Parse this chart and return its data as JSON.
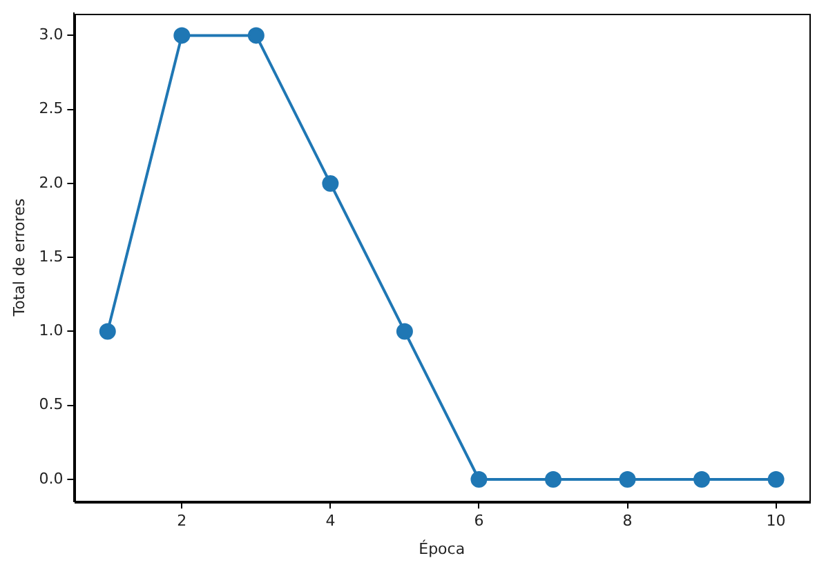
{
  "chart_data": {
    "type": "line",
    "xlabel": "Época",
    "ylabel": "Total de errores",
    "x": [
      1,
      2,
      3,
      4,
      5,
      6,
      7,
      8,
      9,
      10
    ],
    "series": [
      {
        "color": "#1f77b4",
        "values": [
          1,
          3,
          3,
          2,
          1,
          0,
          0,
          0,
          0,
          0
        ]
      }
    ],
    "xlim": [
      0.55,
      10.45
    ],
    "ylim": [
      -0.15,
      3.15
    ],
    "xticks": [
      2,
      4,
      6,
      8,
      10
    ],
    "yticks": [
      {
        "value": 0,
        "label": "0.0"
      },
      {
        "value": 0.5,
        "label": "0.5"
      },
      {
        "value": 1,
        "label": "1.0"
      },
      {
        "value": 1.5,
        "label": "1.5"
      },
      {
        "value": 2,
        "label": "2.0"
      },
      {
        "value": 2.5,
        "label": "2.5"
      },
      {
        "value": 3,
        "label": "3.0"
      }
    ],
    "grid": false,
    "legend": false,
    "marker": "circle",
    "line_style": "solid"
  }
}
